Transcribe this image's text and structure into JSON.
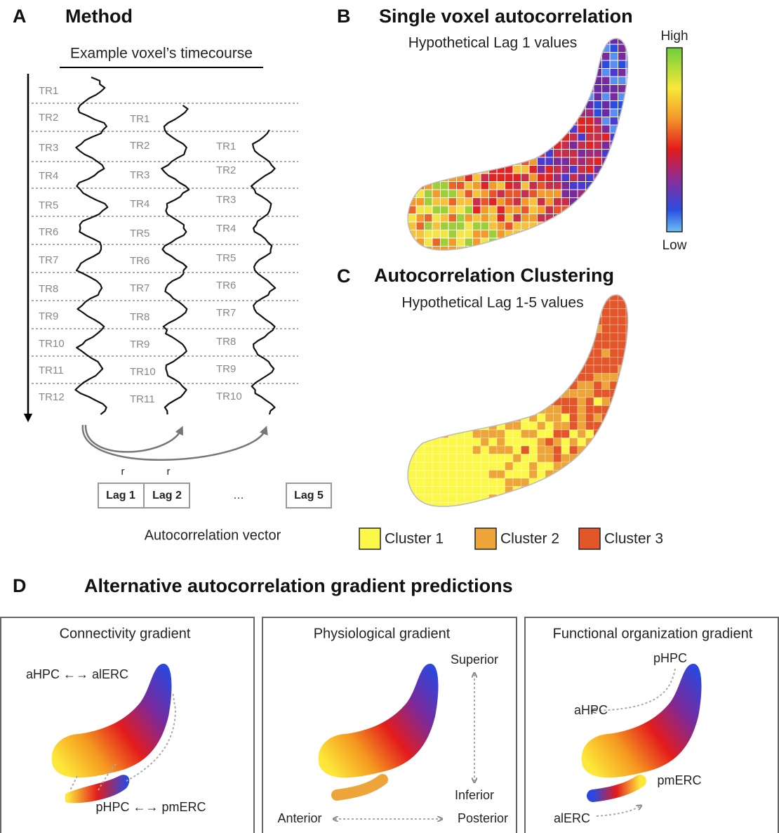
{
  "panels": {
    "a": {
      "letter": "A",
      "title": "Method",
      "subtitle": "Example voxel’s timecourse",
      "columns": [
        [
          "TR1",
          "TR2",
          "TR3",
          "TR4",
          "TR5",
          "TR6",
          "TR7",
          "TR8",
          "TR9",
          "TR10",
          "TR11",
          "TR12"
        ],
        [
          "TR1",
          "TR2",
          "TR3",
          "TR4",
          "TR5",
          "TR6",
          "TR7",
          "TR8",
          "TR9",
          "TR10",
          "TR11"
        ],
        [
          "TR1",
          "TR2",
          "TR3",
          "TR4",
          "TR5",
          "TR6",
          "TR7",
          "TR8",
          "TR9",
          "TR10"
        ]
      ],
      "correlation_labels": [
        "r",
        "r"
      ],
      "lags": [
        "Lag 1",
        "Lag 2",
        "…",
        "Lag 5"
      ],
      "caption": "Autocorrelation vector"
    },
    "b": {
      "letter": "B",
      "title": "Single voxel autocorrelation",
      "subtitle": "Hypothetical Lag 1 values",
      "scale_high": "High",
      "scale_low": "Low"
    },
    "c": {
      "letter": "C",
      "title": "Autocorrelation Clustering",
      "subtitle": "Hypothetical Lag 1-5 values",
      "legend": [
        {
          "label": "Cluster 1",
          "color": "#fbf84a"
        },
        {
          "label": "Cluster 2",
          "color": "#eda53a"
        },
        {
          "label": "Cluster 3",
          "color": "#e2562a"
        }
      ]
    },
    "d": {
      "letter": "D",
      "title": "Alternative autocorrelation gradient predictions",
      "boxes": [
        {
          "title": "Connectivity gradient",
          "labels": [
            "aHPC ←→ alERC",
            "pHPC ←→ pmERC"
          ]
        },
        {
          "title": "Physiological gradient",
          "labels": [
            "Superior",
            "Inferior",
            "Anterior",
            "Posterior"
          ]
        },
        {
          "title": "Functional organization gradient",
          "labels": [
            "pHPC",
            "aHPC",
            "pmERC",
            "alERC"
          ]
        }
      ]
    }
  }
}
